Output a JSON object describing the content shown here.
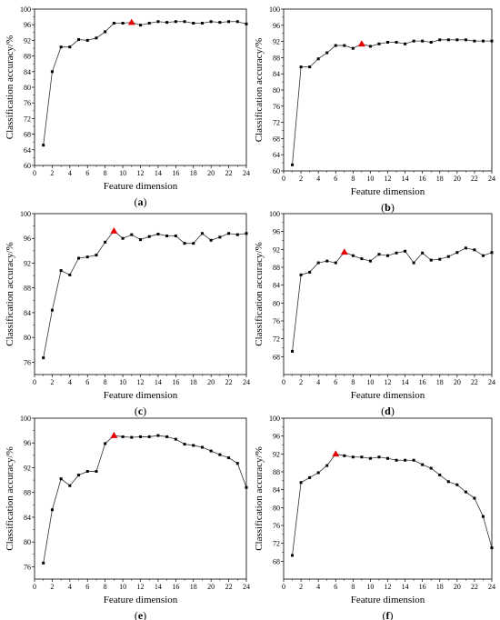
{
  "chart_data": [
    {
      "panel_label": "a",
      "type": "line",
      "xlabel": "Feature dimension",
      "ylabel": "Classification accuracy/%",
      "xlim": [
        0,
        24
      ],
      "ylim": [
        60,
        100
      ],
      "x_ticks": [
        0,
        2,
        4,
        6,
        8,
        10,
        12,
        14,
        16,
        18,
        20,
        22,
        24
      ],
      "y_ticks": [
        60,
        64,
        68,
        72,
        76,
        80,
        84,
        88,
        92,
        96,
        100
      ],
      "x": [
        1,
        2,
        3,
        4,
        5,
        6,
        7,
        8,
        9,
        10,
        11,
        12,
        13,
        14,
        15,
        16,
        17,
        18,
        19,
        20,
        21,
        22,
        23,
        24
      ],
      "y": [
        65.2,
        84.0,
        90.3,
        90.3,
        92.2,
        92.0,
        92.6,
        94.2,
        96.4,
        96.4,
        96.6,
        95.9,
        96.4,
        96.8,
        96.6,
        96.8,
        96.8,
        96.4,
        96.4,
        96.8,
        96.6,
        96.8,
        96.8,
        96.2
      ],
      "highlight_index": 10,
      "highlight_color": "#e60000"
    },
    {
      "panel_label": "b",
      "type": "line",
      "xlabel": "Feature dimension",
      "ylabel": "Classification accuracy/%",
      "xlim": [
        0,
        24
      ],
      "ylim": [
        60,
        100
      ],
      "x_ticks": [
        0,
        2,
        4,
        6,
        8,
        10,
        12,
        14,
        16,
        18,
        20,
        22,
        24
      ],
      "y_ticks": [
        60,
        64,
        68,
        72,
        76,
        80,
        84,
        88,
        92,
        96,
        100
      ],
      "x": [
        1,
        2,
        3,
        4,
        5,
        6,
        7,
        8,
        9,
        10,
        11,
        12,
        13,
        14,
        15,
        16,
        17,
        18,
        19,
        20,
        21,
        22,
        23,
        24
      ],
      "y": [
        61.5,
        85.7,
        85.7,
        87.7,
        89.2,
        91.0,
        91.0,
        90.3,
        91.4,
        90.8,
        91.4,
        91.8,
        91.8,
        91.4,
        92.1,
        92.1,
        91.8,
        92.4,
        92.4,
        92.4,
        92.4,
        92.1,
        92.1,
        92.1
      ],
      "highlight_index": 8,
      "highlight_color": "#e60000"
    },
    {
      "panel_label": "c",
      "type": "line",
      "xlabel": "Feature dimension",
      "ylabel": "Classification accuracy/%",
      "xlim": [
        0,
        24
      ],
      "ylim": [
        74,
        100
      ],
      "x_ticks": [
        0,
        2,
        4,
        6,
        8,
        10,
        12,
        14,
        16,
        18,
        20,
        22,
        24
      ],
      "y_ticks": [
        76,
        80,
        84,
        88,
        92,
        96,
        100
      ],
      "x": [
        1,
        2,
        3,
        4,
        5,
        6,
        7,
        8,
        9,
        10,
        11,
        12,
        13,
        14,
        15,
        16,
        17,
        18,
        19,
        20,
        21,
        22,
        23,
        24
      ],
      "y": [
        76.7,
        84.4,
        90.8,
        90.1,
        92.8,
        93.0,
        93.3,
        95.4,
        97.2,
        96.0,
        96.6,
        95.8,
        96.3,
        96.7,
        96.4,
        96.4,
        95.2,
        95.2,
        96.8,
        95.7,
        96.2,
        96.8,
        96.6,
        96.8
      ],
      "highlight_index": 8,
      "highlight_color": "#e60000"
    },
    {
      "panel_label": "d",
      "type": "line",
      "xlabel": "Feature dimension",
      "ylabel": "Classification accuracy/%",
      "xlim": [
        0,
        24
      ],
      "ylim": [
        64,
        100
      ],
      "x_ticks": [
        0,
        2,
        4,
        6,
        8,
        10,
        12,
        14,
        16,
        18,
        20,
        22,
        24
      ],
      "y_ticks": [
        68,
        72,
        76,
        80,
        84,
        88,
        92,
        96,
        100
      ],
      "x": [
        1,
        2,
        3,
        4,
        5,
        6,
        7,
        8,
        9,
        10,
        11,
        12,
        13,
        14,
        15,
        16,
        17,
        18,
        19,
        20,
        21,
        22,
        23,
        24
      ],
      "y": [
        69.2,
        86.3,
        86.9,
        89.0,
        89.4,
        89.0,
        91.4,
        90.6,
        89.9,
        89.4,
        90.9,
        90.6,
        91.2,
        91.6,
        89.0,
        91.2,
        89.6,
        89.8,
        90.4,
        91.3,
        92.3,
        91.9,
        90.6,
        91.3
      ],
      "highlight_index": 6,
      "highlight_color": "#e60000"
    },
    {
      "panel_label": "e",
      "type": "line",
      "xlabel": "Feature dimension",
      "ylabel": "Classification accuracy/%",
      "xlim": [
        0,
        24
      ],
      "ylim": [
        74,
        100
      ],
      "x_ticks": [
        0,
        2,
        4,
        6,
        8,
        10,
        12,
        14,
        16,
        18,
        20,
        22,
        24
      ],
      "y_ticks": [
        76,
        80,
        84,
        88,
        92,
        96,
        100
      ],
      "x": [
        1,
        2,
        3,
        4,
        5,
        6,
        7,
        8,
        9,
        10,
        11,
        12,
        13,
        14,
        15,
        16,
        17,
        18,
        19,
        20,
        21,
        22,
        23,
        24
      ],
      "y": [
        76.6,
        85.2,
        90.2,
        89.1,
        90.8,
        91.4,
        91.4,
        95.9,
        97.2,
        97.0,
        96.9,
        97.0,
        97.0,
        97.2,
        97.0,
        96.6,
        95.8,
        95.6,
        95.3,
        94.7,
        94.1,
        93.6,
        92.7,
        88.8
      ],
      "highlight_index": 8,
      "highlight_color": "#e60000"
    },
    {
      "panel_label": "f",
      "type": "line",
      "xlabel": "Feature dimension",
      "ylabel": "Classification accuracy/%",
      "xlim": [
        0,
        24
      ],
      "ylim": [
        64,
        100
      ],
      "x_ticks": [
        0,
        2,
        4,
        6,
        8,
        10,
        12,
        14,
        16,
        18,
        20,
        22,
        24
      ],
      "y_ticks": [
        68,
        72,
        76,
        80,
        84,
        88,
        92,
        96,
        100
      ],
      "x": [
        1,
        2,
        3,
        4,
        5,
        6,
        7,
        8,
        9,
        10,
        11,
        12,
        13,
        14,
        15,
        16,
        17,
        18,
        19,
        20,
        21,
        22,
        23,
        24
      ],
      "y": [
        69.3,
        85.6,
        86.7,
        87.8,
        89.4,
        92.0,
        91.6,
        91.3,
        91.3,
        91.0,
        91.3,
        91.0,
        90.6,
        90.6,
        90.6,
        89.6,
        88.8,
        87.3,
        85.8,
        85.1,
        83.5,
        82.1,
        78.0,
        71.0
      ],
      "highlight_index": 5,
      "highlight_color": "#e60000"
    }
  ]
}
